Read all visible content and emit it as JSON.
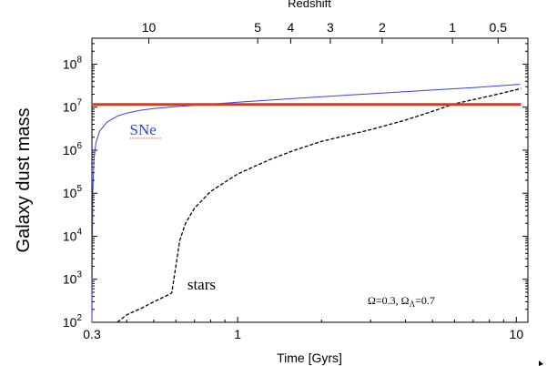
{
  "chart_data": {
    "type": "line",
    "xlabel": "Time [Gyrs]",
    "ylabel": "Galaxy dust mass",
    "top_axis_label": "Redshift",
    "x_scale": "log",
    "y_scale": "log",
    "xlim": [
      0.3,
      11
    ],
    "ylim": [
      100,
      400000000
    ],
    "x_ticks": [
      {
        "value": 0.3,
        "label": "0.3"
      },
      {
        "value": 1,
        "label": "1"
      },
      {
        "value": 10,
        "label": "10"
      }
    ],
    "y_ticks": [
      {
        "value": 100,
        "base": "10",
        "exp": "2"
      },
      {
        "value": 1000,
        "base": "10",
        "exp": "3"
      },
      {
        "value": 10000,
        "base": "10",
        "exp": "4"
      },
      {
        "value": 100000,
        "base": "10",
        "exp": "5"
      },
      {
        "value": 1000000,
        "base": "10",
        "exp": "6"
      },
      {
        "value": 10000000,
        "base": "10",
        "exp": "7"
      },
      {
        "value": 100000000,
        "base": "10",
        "exp": "8"
      }
    ],
    "top_ticks": [
      {
        "label": "10",
        "time": 0.48
      },
      {
        "label": "5",
        "time": 1.18
      },
      {
        "label": "4",
        "time": 1.55
      },
      {
        "label": "3",
        "time": 2.15
      },
      {
        "label": "2",
        "time": 3.3
      },
      {
        "label": "1",
        "time": 5.9
      },
      {
        "label": "0.5",
        "time": 8.6
      }
    ],
    "series": [
      {
        "name": "SNe",
        "color": "#3344dd",
        "style": "solid",
        "x": [
          0.3,
          0.302,
          0.305,
          0.31,
          0.32,
          0.34,
          0.37,
          0.4,
          0.45,
          0.5,
          0.6,
          0.7,
          0.8,
          1.0,
          1.5,
          2,
          3,
          5,
          7,
          10.3
        ],
        "y": [
          100,
          100000,
          600000,
          1500000,
          2800000,
          4500000,
          6200000,
          7300000,
          8500000,
          9300000,
          10300000,
          11000000,
          11800000,
          13000000,
          15500000,
          17500000,
          20500000,
          25000000,
          28500000,
          34000000
        ]
      },
      {
        "name": "stars",
        "color": "#000000",
        "style": "dashed",
        "x": [
          0.37,
          0.4,
          0.45,
          0.5,
          0.55,
          0.58,
          0.6,
          0.62,
          0.65,
          0.7,
          0.8,
          1.0,
          1.3,
          1.6,
          2,
          3,
          4,
          5,
          6,
          8,
          10.4
        ],
        "y": [
          100,
          150,
          210,
          300,
          400,
          480,
          2000,
          8000,
          20000,
          45000,
          110000,
          280000,
          600000,
          1000000,
          1600000,
          3000000,
          5000000,
          8000000,
          12000000,
          18000000,
          27000000
        ]
      },
      {
        "name": "",
        "color": "#ee3311",
        "style": "solid",
        "x": [
          0.3,
          10.4
        ],
        "y": [
          11500000,
          11500000
        ]
      }
    ],
    "annotations": [
      {
        "text": "SNe",
        "x": 0.41,
        "y": 2300000,
        "color": "#3344dd"
      },
      {
        "text": "stars",
        "x": 0.66,
        "y": 580,
        "color": "#000000"
      }
    ],
    "cosmology": {
      "omega": "Ω=0.3, Ω",
      "sub": "Λ",
      "tail": "=0.7"
    }
  }
}
